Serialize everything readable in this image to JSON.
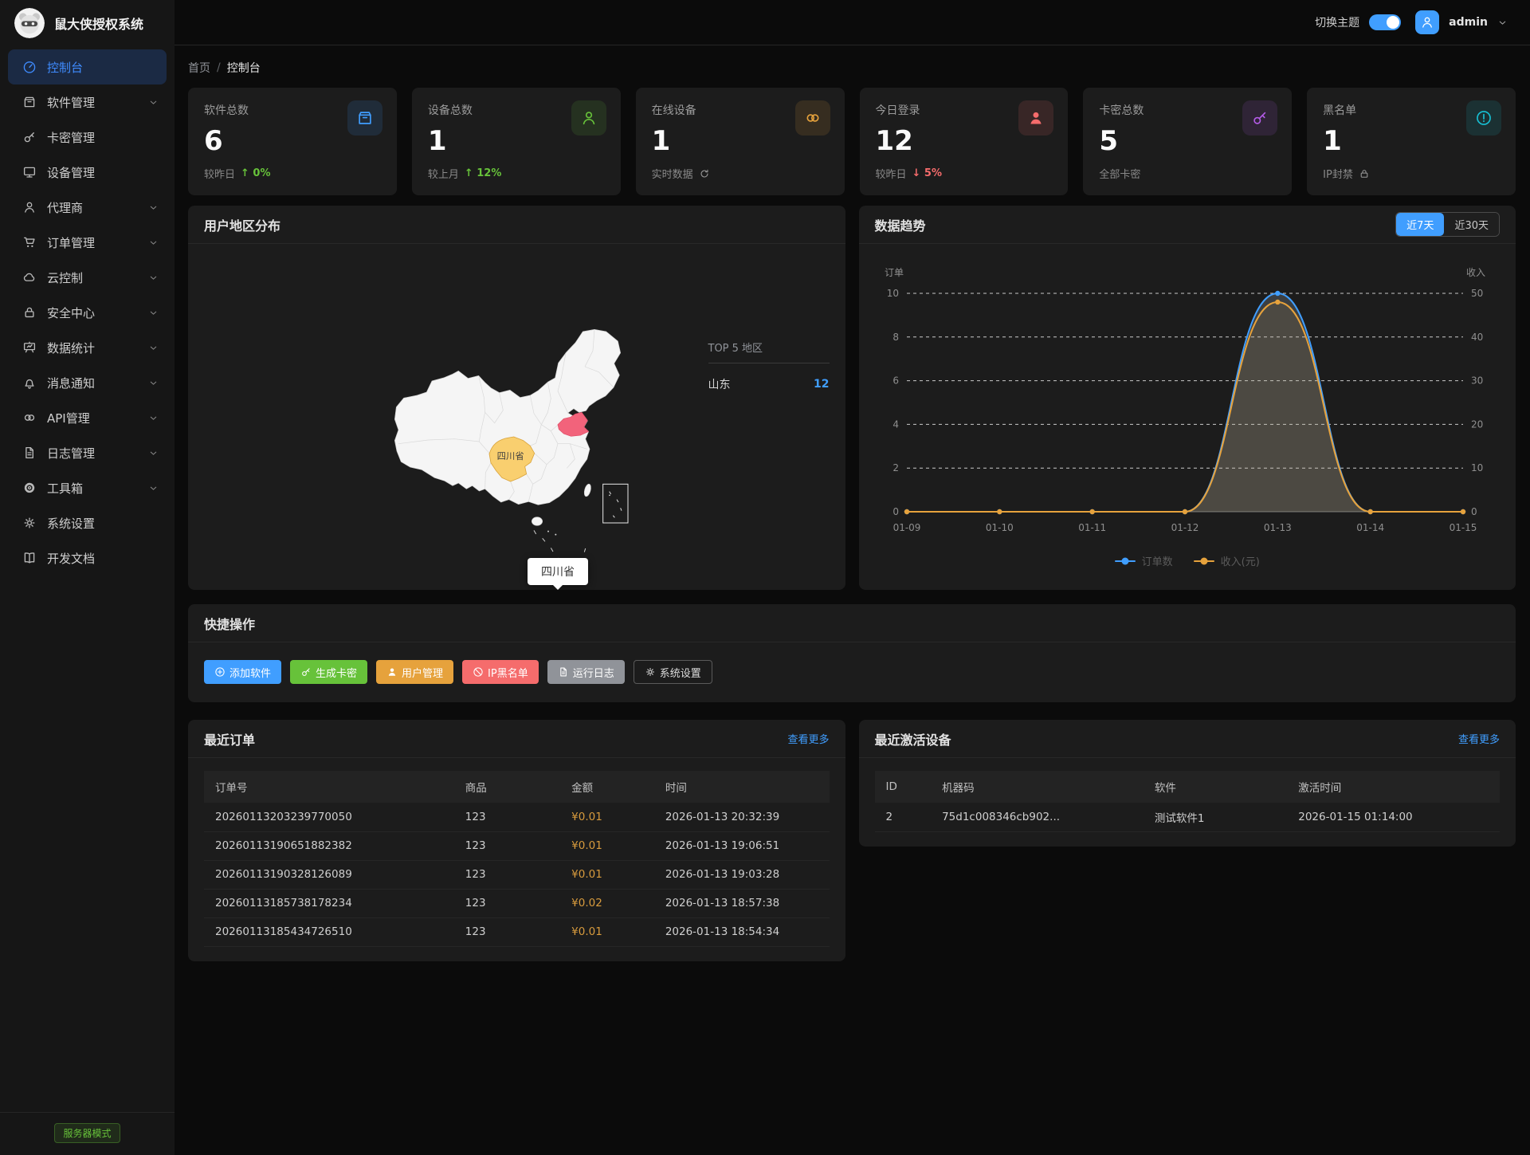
{
  "app": {
    "title": "鼠大侠授权系统"
  },
  "topbar": {
    "theme_label": "切换主题",
    "theme_on": true,
    "username": "admin"
  },
  "sidebar": {
    "items": [
      {
        "label": "控制台",
        "icon": "dashboard",
        "chevron": false,
        "active": true
      },
      {
        "label": "软件管理",
        "icon": "package",
        "chevron": true,
        "active": false
      },
      {
        "label": "卡密管理",
        "icon": "key",
        "chevron": false,
        "active": false
      },
      {
        "label": "设备管理",
        "icon": "monitor",
        "chevron": false,
        "active": false
      },
      {
        "label": "代理商",
        "icon": "user",
        "chevron": true,
        "active": false
      },
      {
        "label": "订单管理",
        "icon": "cart",
        "chevron": true,
        "active": false
      },
      {
        "label": "云控制",
        "icon": "cloud",
        "chevron": true,
        "active": false
      },
      {
        "label": "安全中心",
        "icon": "lock",
        "chevron": true,
        "active": false
      },
      {
        "label": "数据统计",
        "icon": "chart-board",
        "chevron": true,
        "active": false
      },
      {
        "label": "消息通知",
        "icon": "bell",
        "chevron": true,
        "active": false
      },
      {
        "label": "API管理",
        "icon": "link",
        "chevron": true,
        "active": false
      },
      {
        "label": "日志管理",
        "icon": "document",
        "chevron": true,
        "active": false
      },
      {
        "label": "工具箱",
        "icon": "gear-solid",
        "chevron": true,
        "active": false
      },
      {
        "label": "系统设置",
        "icon": "gear",
        "chevron": false,
        "active": false
      },
      {
        "label": "开发文档",
        "icon": "book",
        "chevron": false,
        "active": false
      }
    ],
    "footer_badge": "服务器模式"
  },
  "breadcrumb": {
    "home": "首页",
    "sep": "/",
    "current": "控制台"
  },
  "stats": [
    {
      "label": "软件总数",
      "value": "6",
      "sub": "较昨日",
      "delta": "↑ 0%",
      "delta_type": "up",
      "icon": "package",
      "accent": "#409eff"
    },
    {
      "label": "设备总数",
      "value": "1",
      "sub": "较上月",
      "delta": "↑ 12%",
      "delta_type": "up",
      "icon": "user",
      "accent": "#67c23a"
    },
    {
      "label": "在线设备",
      "value": "1",
      "sub": "实时数据",
      "delta": "",
      "delta_type": "refresh",
      "icon": "link",
      "accent": "#e6a23c"
    },
    {
      "label": "今日登录",
      "value": "12",
      "sub": "较昨日",
      "delta": "↓ 5%",
      "delta_type": "down",
      "icon": "user-filled",
      "accent": "#f56c6c"
    },
    {
      "label": "卡密总数",
      "value": "5",
      "sub": "全部卡密",
      "delta": "",
      "delta_type": "none",
      "icon": "key",
      "accent": "#b35ce6"
    },
    {
      "label": "黑名单",
      "value": "1",
      "sub": "IP封禁",
      "delta": "",
      "delta_type": "lock",
      "icon": "alert-circle",
      "accent": "#17c0d4"
    }
  ],
  "map_panel": {
    "title": "用户地区分布",
    "top5_title": "TOP 5 地区",
    "regions": [
      {
        "name": "山东",
        "value": "12"
      }
    ],
    "province_label": "四川省",
    "tooltip": "四川省",
    "highlight_yellow": {
      "name": "四川省",
      "color": "#f9cf6f"
    },
    "highlight_red": {
      "name": "山东",
      "color": "#f2637b"
    }
  },
  "trend_panel": {
    "title": "数据趋势",
    "range_buttons": [
      "近7天",
      "近30天"
    ],
    "active_range": 0
  },
  "chart_data": {
    "type": "line",
    "x": [
      "01-09",
      "01-10",
      "01-11",
      "01-12",
      "01-13",
      "01-14",
      "01-15"
    ],
    "series": [
      {
        "name": "订单数",
        "color": "#409eff",
        "axis": "left",
        "values": [
          0,
          0,
          0,
          0,
          10,
          0,
          0
        ],
        "area_fill": "rgba(173,192,210,0.22)"
      },
      {
        "name": "收入(元)",
        "color": "#e6a23c",
        "axis": "right",
        "values": [
          0,
          0,
          0,
          0,
          48,
          0,
          0
        ],
        "area_fill": "rgba(230,162,60,0.10)"
      }
    ],
    "left_axis": {
      "name": "订单",
      "ticks": [
        0,
        2,
        4,
        6,
        8,
        10
      ],
      "max": 10
    },
    "right_axis": {
      "name": "收入",
      "ticks": [
        0,
        10,
        20,
        30,
        40,
        50
      ],
      "max": 50
    },
    "grid": "dashed",
    "legend_position": "bottom"
  },
  "quick_panel": {
    "title": "快捷操作",
    "buttons": [
      {
        "label": "添加软件",
        "icon": "plus-circle",
        "bg": "#409eff",
        "style": "solid"
      },
      {
        "label": "生成卡密",
        "icon": "key",
        "bg": "#67c23a",
        "style": "solid"
      },
      {
        "label": "用户管理",
        "icon": "user-filled",
        "bg": "#e6a23c",
        "style": "solid"
      },
      {
        "label": "IP黑名单",
        "icon": "ban",
        "bg": "#f56c6c",
        "style": "solid"
      },
      {
        "label": "运行日志",
        "icon": "document",
        "bg": "#909399",
        "style": "solid"
      },
      {
        "label": "系统设置",
        "icon": "gear",
        "bg": "",
        "style": "outline"
      }
    ]
  },
  "orders_panel": {
    "title": "最近订单",
    "more": "查看更多",
    "headers": [
      "订单号",
      "商品",
      "金额",
      "时间"
    ],
    "rows": [
      [
        "20260113203239770050",
        "123",
        "¥0.01",
        "2026-01-13 20:32:39"
      ],
      [
        "20260113190651882382",
        "123",
        "¥0.01",
        "2026-01-13 19:06:51"
      ],
      [
        "20260113190328126089",
        "123",
        "¥0.01",
        "2026-01-13 19:03:28"
      ],
      [
        "20260113185738178234",
        "123",
        "¥0.02",
        "2026-01-13 18:57:38"
      ],
      [
        "20260113185434726510",
        "123",
        "¥0.01",
        "2026-01-13 18:54:34"
      ]
    ]
  },
  "devices_panel": {
    "title": "最近激活设备",
    "more": "查看更多",
    "headers": [
      "ID",
      "机器码",
      "软件",
      "激活时间"
    ],
    "rows": [
      [
        "2",
        "75d1c008346cb902...",
        "测试软件1",
        "2026-01-15 01:14:00"
      ]
    ]
  }
}
